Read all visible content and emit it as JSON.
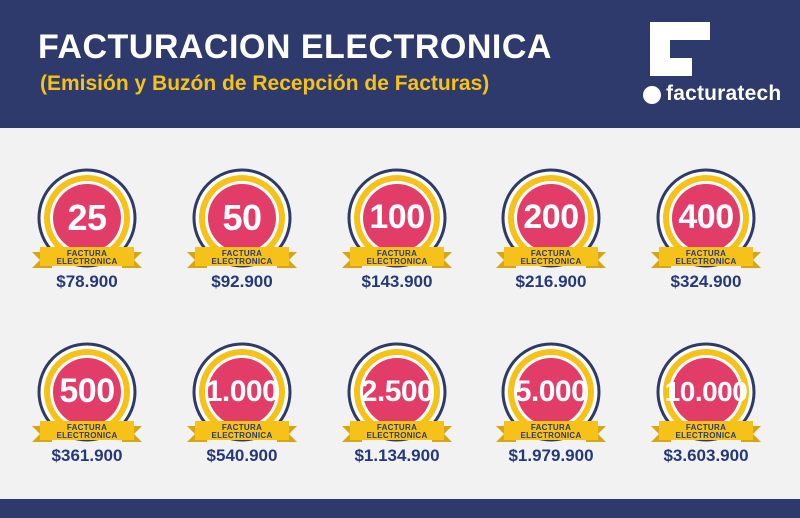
{
  "header": {
    "title": "FACTURACION ELECTRONICA",
    "subtitle": "(Emisión y Buzón de Recepción de Facturas)"
  },
  "logo": {
    "brand_name": "facturatech",
    "icon": "facturatech-logo-icon"
  },
  "badge": {
    "line1": "FACTURA",
    "line2": "ELECTRONICA"
  },
  "colors": {
    "navy": "#2d3a6b",
    "yellow": "#f6c21a",
    "pink": "#e23d69",
    "background": "#f2f2f3"
  },
  "plans": [
    {
      "quantity": "25",
      "price": "$78.900"
    },
    {
      "quantity": "50",
      "price": "$92.900"
    },
    {
      "quantity": "100",
      "price": "$143.900"
    },
    {
      "quantity": "200",
      "price": "$216.900"
    },
    {
      "quantity": "400",
      "price": "$324.900"
    },
    {
      "quantity": "500",
      "price": "$361.900"
    },
    {
      "quantity": "1.000",
      "price": "$540.900"
    },
    {
      "quantity": "2.500",
      "price": "$1.134.900"
    },
    {
      "quantity": "5.000",
      "price": "$1.979.900"
    },
    {
      "quantity": "10.000",
      "price": "$3.603.900"
    }
  ]
}
